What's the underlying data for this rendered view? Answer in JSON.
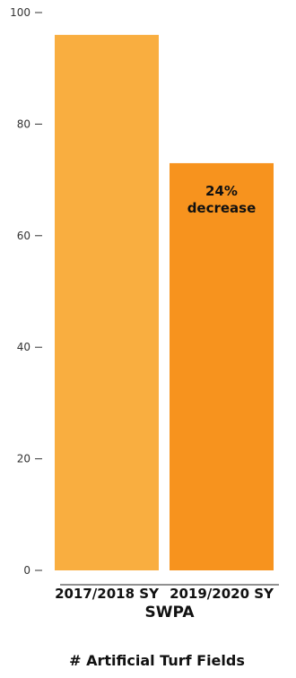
{
  "chart_data": {
    "type": "bar",
    "categories": [
      "2017/2018 SY",
      "2019/2020 SY"
    ],
    "values": [
      96,
      73
    ],
    "colors": [
      "#F9AE40",
      "#F7931E"
    ],
    "group_label": "SWPA",
    "xlabel": "# Artificial Turf Fields",
    "ylabel": "",
    "ylim": [
      0,
      100
    ],
    "yticks": [
      0,
      20,
      40,
      60,
      80,
      100
    ],
    "annotation": {
      "category_index": 1,
      "lines": [
        "24%",
        "decrease"
      ]
    },
    "grid": false
  }
}
